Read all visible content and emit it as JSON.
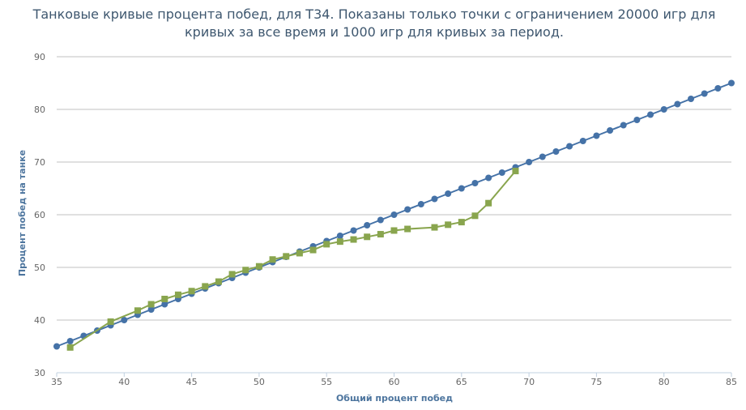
{
  "chart_data": {
    "type": "line",
    "title_lines": [
      "Танковые кривые процента побед, для T34. Показаны только точки с ограничением 20000 игр для",
      "кривых за все время и 1000 игр для кривых за период."
    ],
    "xlabel": "Общий процент побед",
    "ylabel": "Процент побед на танке",
    "xlim": [
      35,
      85
    ],
    "ylim": [
      30,
      90
    ],
    "x_ticks": [
      35,
      40,
      45,
      50,
      55,
      60,
      65,
      70,
      75,
      80,
      85
    ],
    "y_ticks": [
      30,
      40,
      50,
      60,
      70,
      80,
      90
    ],
    "grid": true,
    "legend": "none",
    "series": [
      {
        "color": "#4572a7",
        "marker": "circle",
        "points": [
          [
            35,
            35
          ],
          [
            36,
            36
          ],
          [
            37,
            37
          ],
          [
            38,
            38
          ],
          [
            39,
            39
          ],
          [
            40,
            40
          ],
          [
            41,
            41
          ],
          [
            42,
            42
          ],
          [
            43,
            43
          ],
          [
            44,
            44
          ],
          [
            45,
            45
          ],
          [
            46,
            46
          ],
          [
            47,
            47
          ],
          [
            48,
            48
          ],
          [
            49,
            49
          ],
          [
            50,
            50
          ],
          [
            51,
            51
          ],
          [
            52,
            52
          ],
          [
            53,
            53
          ],
          [
            54,
            54
          ],
          [
            55,
            55
          ],
          [
            56,
            56
          ],
          [
            57,
            57
          ],
          [
            58,
            58
          ],
          [
            59,
            59
          ],
          [
            60,
            60
          ],
          [
            61,
            61
          ],
          [
            62,
            62
          ],
          [
            63,
            63
          ],
          [
            64,
            64
          ],
          [
            65,
            65
          ],
          [
            66,
            66
          ],
          [
            67,
            67
          ],
          [
            68,
            68
          ],
          [
            69,
            69
          ],
          [
            70,
            70
          ],
          [
            71,
            71
          ],
          [
            72,
            72
          ],
          [
            73,
            73
          ],
          [
            74,
            74
          ],
          [
            75,
            75
          ],
          [
            76,
            76
          ],
          [
            77,
            77
          ],
          [
            78,
            78
          ],
          [
            79,
            79
          ],
          [
            80,
            80
          ],
          [
            81,
            81
          ],
          [
            82,
            82
          ],
          [
            83,
            83
          ],
          [
            84,
            84
          ],
          [
            85,
            85
          ]
        ]
      },
      {
        "color": "#89a54e",
        "marker": "square",
        "points": [
          [
            36,
            34.8
          ],
          [
            39,
            39.7
          ],
          [
            41,
            41.8
          ],
          [
            42,
            43.0
          ],
          [
            43,
            44.0
          ],
          [
            44,
            44.8
          ],
          [
            45,
            45.5
          ],
          [
            46,
            46.4
          ],
          [
            47,
            47.3
          ],
          [
            48,
            48.7
          ],
          [
            49,
            49.5
          ],
          [
            50,
            50.2
          ],
          [
            51,
            51.5
          ],
          [
            52,
            52.1
          ],
          [
            53,
            52.7
          ],
          [
            54,
            53.3
          ],
          [
            55,
            54.4
          ],
          [
            56,
            54.9
          ],
          [
            57,
            55.3
          ],
          [
            58,
            55.8
          ],
          [
            59,
            56.3
          ],
          [
            60,
            57.0
          ],
          [
            61,
            57.3
          ],
          [
            63,
            57.6
          ],
          [
            64,
            58.1
          ],
          [
            65,
            58.6
          ],
          [
            66,
            59.8
          ],
          [
            67,
            62.2
          ],
          [
            69,
            68.3
          ]
        ]
      }
    ]
  }
}
